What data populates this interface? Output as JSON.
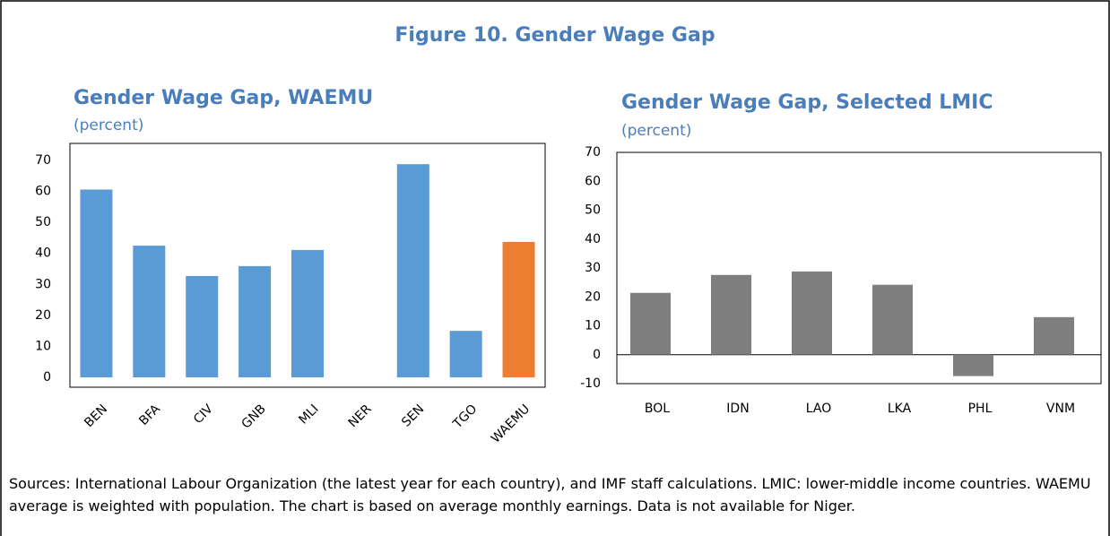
{
  "title": "Figure 10. Gender Wage Gap",
  "chart_data": [
    {
      "type": "bar",
      "title": "Gender Wage Gap, WAEMU",
      "subtitle": "(percent)",
      "categories": [
        "BEN",
        "BFA",
        "CIV",
        "GNB",
        "MLI",
        "NER",
        "SEN",
        "TGO",
        "WAEMU"
      ],
      "values": [
        60.6,
        42.5,
        32.7,
        35.9,
        41.1,
        null,
        68.8,
        15.0,
        43.7
      ],
      "colors": [
        "#5b9bd5",
        "#5b9bd5",
        "#5b9bd5",
        "#5b9bd5",
        "#5b9bd5",
        "#5b9bd5",
        "#5b9bd5",
        "#5b9bd5",
        "#ed7d31"
      ],
      "ylim": [
        0,
        70
      ],
      "yticks": [
        0,
        10,
        20,
        30,
        40,
        50,
        60,
        70
      ],
      "grid": false,
      "rotate_labels": true
    },
    {
      "type": "bar",
      "title": "Gender Wage Gap, Selected LMIC",
      "subtitle": "(percent)",
      "categories": [
        "BOL",
        "IDN",
        "LAO",
        "LKA",
        "PHL",
        "VNM"
      ],
      "values": [
        21.4,
        27.6,
        28.8,
        24.2,
        -7.4,
        13.0
      ],
      "colors": [
        "#7f7f7f",
        "#7f7f7f",
        "#7f7f7f",
        "#7f7f7f",
        "#7f7f7f",
        "#7f7f7f"
      ],
      "ylim": [
        -10,
        70
      ],
      "yticks": [
        -10,
        0,
        10,
        20,
        30,
        40,
        50,
        60,
        70
      ],
      "grid": false,
      "rotate_labels": false
    }
  ],
  "footnote": "Sources: International Labour Organization (the latest year for each country), and IMF staff calculations. LMIC: lower-middle income countries. WAEMU average is weighted with population. The chart is based on average monthly earnings. Data is not available for Niger."
}
